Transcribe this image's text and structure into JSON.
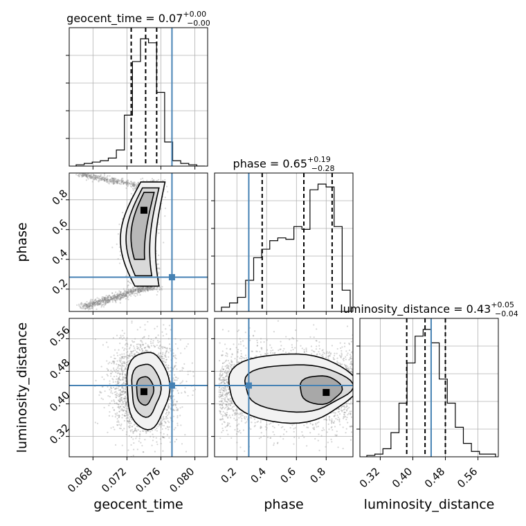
{
  "chart_data": {
    "type": "corner",
    "parameters": [
      {
        "name": "geocent_time",
        "range": [
          0.0652,
          0.0815
        ],
        "ticks": [
          "0.068",
          "0.072",
          "0.076",
          "0.080"
        ],
        "tick_values": [
          0.068,
          0.072,
          0.076,
          0.08
        ]
      },
      {
        "name": "phase",
        "range": [
          0.05,
          0.98
        ],
        "ticks": [
          "0.2",
          "0.4",
          "0.6",
          "0.8"
        ],
        "tick_values": [
          0.2,
          0.4,
          0.6,
          0.8
        ]
      },
      {
        "name": "luminosity_distance",
        "range": [
          0.27,
          0.61
        ],
        "ticks": [
          "0.32",
          "0.40",
          "0.48",
          "0.56"
        ],
        "tick_values": [
          0.32,
          0.4,
          0.48,
          0.56
        ]
      }
    ],
    "titles": [
      {
        "prefix": "geocent_time = 0.07",
        "sup": "+0.00",
        "sub": "−0.00"
      },
      {
        "prefix": "phase = 0.65",
        "sup": "+0.19",
        "sub": "−0.28"
      },
      {
        "prefix": "luminosity_distance = 0.43",
        "sup": "+0.05",
        "sub": "−0.04"
      }
    ],
    "truths": [
      0.0773,
      0.28,
      0.445
    ],
    "quantiles": [
      [
        0.0725,
        0.0742,
        0.0755
      ],
      [
        0.37,
        0.65,
        0.84
      ],
      [
        0.385,
        0.43,
        0.48
      ]
    ],
    "histograms": [
      {
        "values": [
          1,
          2,
          3,
          4,
          6,
          12,
          38,
          78,
          95,
          92,
          55,
          18,
          4,
          2,
          1,
          0
        ]
      },
      {
        "values": [
          3,
          6,
          10,
          22,
          38,
          44,
          50,
          52,
          51,
          60,
          58,
          86,
          90,
          88,
          60,
          15
        ]
      },
      {
        "values": [
          1,
          2,
          6,
          18,
          40,
          70,
          90,
          95,
          85,
          58,
          40,
          22,
          10,
          4,
          2,
          2
        ]
      }
    ],
    "grid": true,
    "colors": {
      "truth": "#4682b4",
      "hist": "#000000",
      "grid": "#b0b0b0"
    }
  }
}
